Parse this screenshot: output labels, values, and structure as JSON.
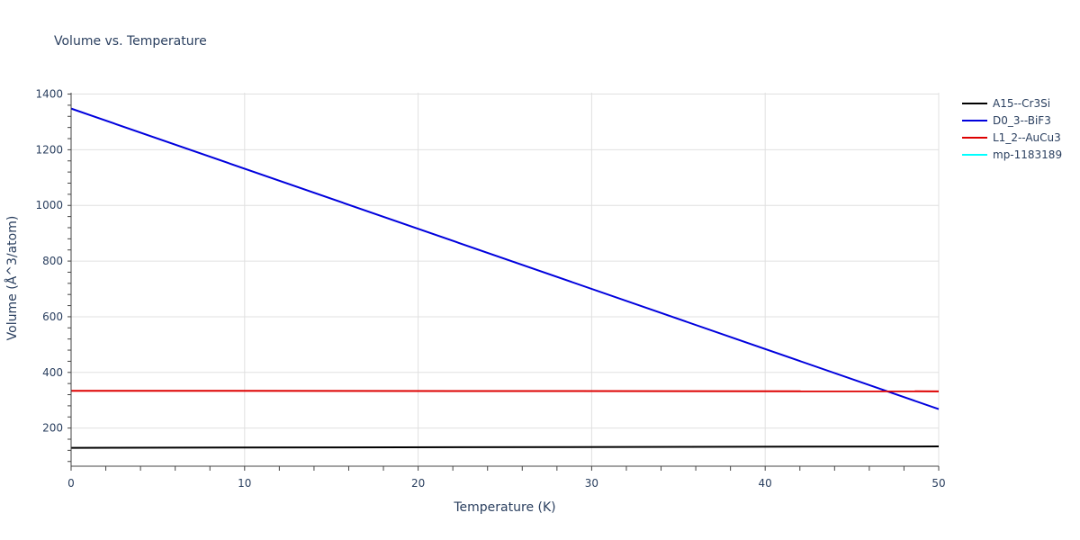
{
  "chart_data": {
    "type": "line",
    "title": "Volume vs. Temperature",
    "xlabel": "Temperature (K)",
    "ylabel": "Volume (Å^3/atom)",
    "xlim": [
      0,
      50
    ],
    "ylim": [
      63,
      1405
    ],
    "xticks": [
      0,
      10,
      20,
      30,
      40,
      50
    ],
    "yticks": [
      200,
      400,
      600,
      800,
      1000,
      1200,
      1400
    ],
    "grid": true,
    "legend_position": "top-right",
    "series": [
      {
        "name": "A15--Cr3Si",
        "color": "#000000",
        "x": [
          0,
          50
        ],
        "y": [
          129,
          134
        ]
      },
      {
        "name": "D0_3--BiF3",
        "color": "#0000dd",
        "x": [
          0,
          50
        ],
        "y": [
          1348,
          268
        ]
      },
      {
        "name": "L1_2--AuCu3",
        "color": "#dd0000",
        "x": [
          0,
          50
        ],
        "y": [
          334,
          332
        ]
      },
      {
        "name": "mp-1183189",
        "color": "#00ffff",
        "x": [],
        "y": []
      }
    ]
  }
}
